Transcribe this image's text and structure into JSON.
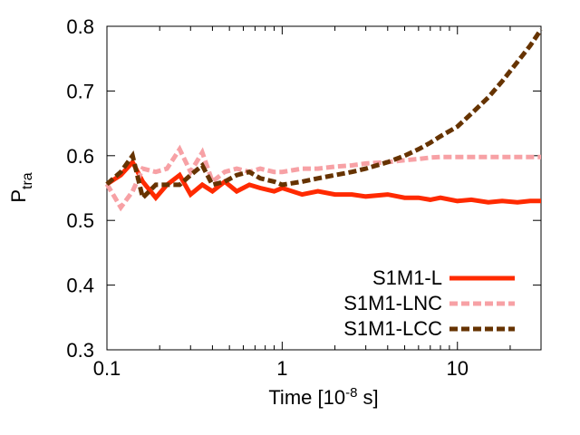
{
  "chart_data": {
    "type": "line",
    "title": "",
    "xlabel": "Time [10",
    "xlabel_exponent": "-8",
    "xlabel_suffix": " s]",
    "ylabel": "P",
    "ylabel_subscript": "tra",
    "xscale": "log",
    "xlim": [
      0.1,
      30
    ],
    "ylim": [
      0.3,
      0.8
    ],
    "x_ticks": [
      0.1,
      1,
      10
    ],
    "x_tick_labels": [
      "0.1",
      "1",
      "10"
    ],
    "y_ticks": [
      0.3,
      0.4,
      0.5,
      0.6,
      0.7,
      0.8
    ],
    "y_tick_labels": [
      "0.3",
      "0.4",
      "0.5",
      "0.6",
      "0.7",
      "0.8"
    ],
    "grid": false,
    "legend_position": "bottom-right",
    "series": [
      {
        "name": "S1M1-L",
        "color": "#ff2a00",
        "style": "solid",
        "x": [
          0.1,
          0.12,
          0.14,
          0.16,
          0.19,
          0.22,
          0.26,
          0.3,
          0.35,
          0.4,
          0.47,
          0.55,
          0.65,
          0.75,
          0.9,
          1.0,
          1.3,
          1.6,
          2.0,
          2.5,
          3.0,
          4.0,
          5.0,
          6.0,
          7.0,
          8.0,
          10.0,
          12.0,
          15.0,
          18.0,
          22.0,
          26.0,
          30.0
        ],
        "y": [
          0.556,
          0.57,
          0.59,
          0.56,
          0.535,
          0.555,
          0.57,
          0.54,
          0.555,
          0.545,
          0.56,
          0.545,
          0.555,
          0.55,
          0.545,
          0.55,
          0.54,
          0.545,
          0.54,
          0.54,
          0.537,
          0.54,
          0.535,
          0.535,
          0.532,
          0.535,
          0.53,
          0.532,
          0.528,
          0.53,
          0.528,
          0.53,
          0.53
        ]
      },
      {
        "name": "S1M1-LNC",
        "color": "#f7a1a5",
        "style": "dashed",
        "x": [
          0.1,
          0.12,
          0.14,
          0.16,
          0.19,
          0.22,
          0.26,
          0.3,
          0.35,
          0.4,
          0.47,
          0.55,
          0.65,
          0.75,
          0.9,
          1.0,
          1.3,
          1.6,
          2.0,
          2.5,
          3.0,
          4.0,
          5.0,
          6.0,
          7.0,
          8.0,
          10.0,
          12.0,
          15.0,
          18.0,
          22.0,
          26.0,
          30.0
        ],
        "y": [
          0.556,
          0.52,
          0.545,
          0.58,
          0.575,
          0.58,
          0.61,
          0.575,
          0.605,
          0.56,
          0.575,
          0.58,
          0.575,
          0.58,
          0.575,
          0.575,
          0.58,
          0.58,
          0.583,
          0.585,
          0.588,
          0.59,
          0.593,
          0.595,
          0.597,
          0.598,
          0.598,
          0.598,
          0.598,
          0.598,
          0.598,
          0.598,
          0.598
        ]
      },
      {
        "name": "S1M1-LCC",
        "color": "#663300",
        "style": "dashed",
        "x": [
          0.1,
          0.12,
          0.14,
          0.16,
          0.19,
          0.22,
          0.26,
          0.3,
          0.35,
          0.4,
          0.47,
          0.55,
          0.65,
          0.75,
          0.9,
          1.0,
          1.3,
          1.6,
          2.0,
          2.5,
          3.0,
          4.0,
          5.0,
          6.0,
          7.0,
          8.0,
          10.0,
          12.0,
          15.0,
          18.0,
          22.0,
          26.0,
          30.0
        ],
        "y": [
          0.556,
          0.575,
          0.6,
          0.535,
          0.555,
          0.555,
          0.555,
          0.57,
          0.585,
          0.555,
          0.56,
          0.57,
          0.575,
          0.565,
          0.56,
          0.555,
          0.56,
          0.565,
          0.57,
          0.575,
          0.58,
          0.59,
          0.6,
          0.61,
          0.62,
          0.63,
          0.645,
          0.665,
          0.69,
          0.715,
          0.745,
          0.77,
          0.795
        ]
      }
    ]
  }
}
